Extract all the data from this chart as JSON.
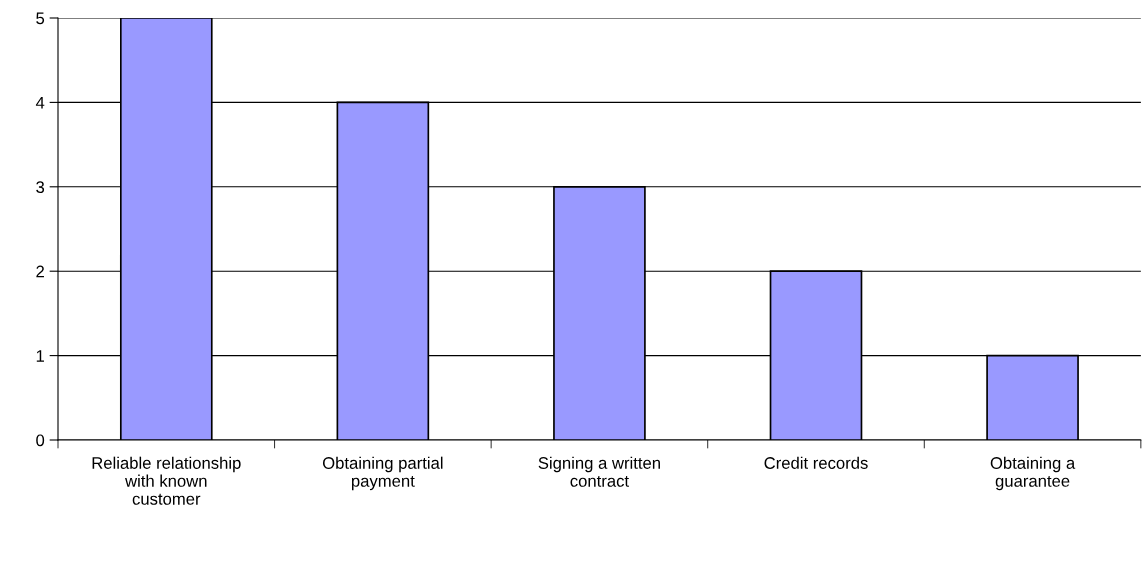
{
  "chart_data": {
    "type": "bar",
    "categories": [
      "Reliable relationship\nwith known\ncustomer",
      "Obtaining partial\npayment",
      "Signing a written\ncontract",
      "Credit records",
      "Obtaining a\nguarantee"
    ],
    "values": [
      5,
      4,
      3,
      2,
      1
    ],
    "color": "#9999ff",
    "ylim": [
      0,
      5
    ],
    "yticks": [
      0,
      1,
      2,
      3,
      4,
      5
    ],
    "grid": "y"
  }
}
